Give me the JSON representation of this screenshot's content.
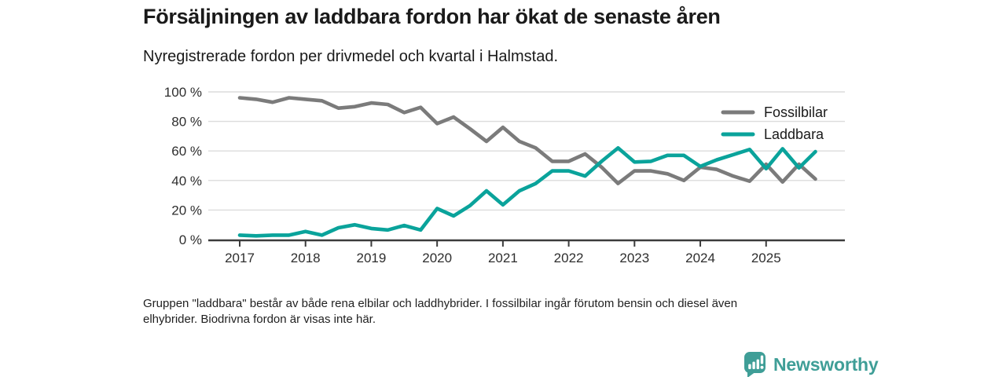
{
  "header": {
    "title": "Försäljningen av laddbara fordon har ökat de senaste åren",
    "subtitle": "Nyregistrerade fordon per drivmedel och kvartal i Halmstad."
  },
  "chart_data": {
    "type": "line",
    "title": "Försäljningen av laddbara fordon har ökat de senaste åren",
    "subtitle": "Nyregistrerade fordon per drivmedel och kvartal i Halmstad.",
    "xlabel": "",
    "ylabel": "",
    "ylim": [
      0,
      100
    ],
    "grid": "horizontal",
    "legend_position": "top-right",
    "y_tick_labels": [
      "0 %",
      "20 %",
      "40 %",
      "60 %",
      "80 %",
      "100 %"
    ],
    "y_tick_values": [
      0,
      20,
      40,
      60,
      80,
      100
    ],
    "x_tick_labels": [
      "2017",
      "2018",
      "2019",
      "2020",
      "2021",
      "2022",
      "2023",
      "2024",
      "2025"
    ],
    "quarters": [
      "2017 Q1",
      "2017 Q2",
      "2017 Q3",
      "2017 Q4",
      "2018 Q1",
      "2018 Q2",
      "2018 Q3",
      "2018 Q4",
      "2019 Q1",
      "2019 Q2",
      "2019 Q3",
      "2019 Q4",
      "2020 Q1",
      "2020 Q2",
      "2020 Q3",
      "2020 Q4",
      "2021 Q1",
      "2021 Q2",
      "2021 Q3",
      "2021 Q4",
      "2022 Q1",
      "2022 Q2",
      "2022 Q3",
      "2022 Q4",
      "2023 Q1",
      "2023 Q2",
      "2023 Q3",
      "2023 Q4",
      "2024 Q1",
      "2024 Q2",
      "2024 Q3",
      "2024 Q4",
      "2025 Q1",
      "2025 Q2",
      "2025 Q3",
      "2025 Q4"
    ],
    "series": [
      {
        "name": "Fossilbilar",
        "color": "#7b7b7b",
        "values": [
          96,
          95,
          93,
          96,
          95,
          94,
          89,
          90,
          92.5,
          91.5,
          86,
          89.5,
          78.5,
          83,
          75,
          66.5,
          76,
          66.5,
          62,
          53,
          53,
          58,
          49,
          38,
          46.5,
          46.5,
          44.5,
          40,
          49,
          47.5,
          43,
          39.5,
          51,
          39,
          51,
          41
        ]
      },
      {
        "name": "Laddbara",
        "color": "#0aa39b",
        "values": [
          3,
          2.5,
          3,
          3,
          5.5,
          3,
          8,
          10,
          7.5,
          6.5,
          9.5,
          6.5,
          21,
          16,
          23,
          33,
          23.5,
          33,
          38,
          46.5,
          46.5,
          43,
          53,
          62,
          52.5,
          53,
          57,
          57,
          49.5,
          54,
          57.5,
          61,
          48,
          61.5,
          48.5,
          59.5
        ]
      }
    ],
    "colors": {
      "grid_line": "#dcdcdc",
      "axis_line": "#3c3c3c",
      "tick_text": "#2e2e2e"
    }
  },
  "footnote": {
    "line1": "Gruppen \"laddbara\" består av både rena elbilar och laddhybrider. I fossilbilar ingår förutom bensin och diesel även",
    "line2": "elhybrider. Biodrivna fordon är visas inte här."
  },
  "logo": {
    "text": "Newsworthy",
    "color": "#3f9e97",
    "icon": "bar-chart-speech-bubble"
  }
}
